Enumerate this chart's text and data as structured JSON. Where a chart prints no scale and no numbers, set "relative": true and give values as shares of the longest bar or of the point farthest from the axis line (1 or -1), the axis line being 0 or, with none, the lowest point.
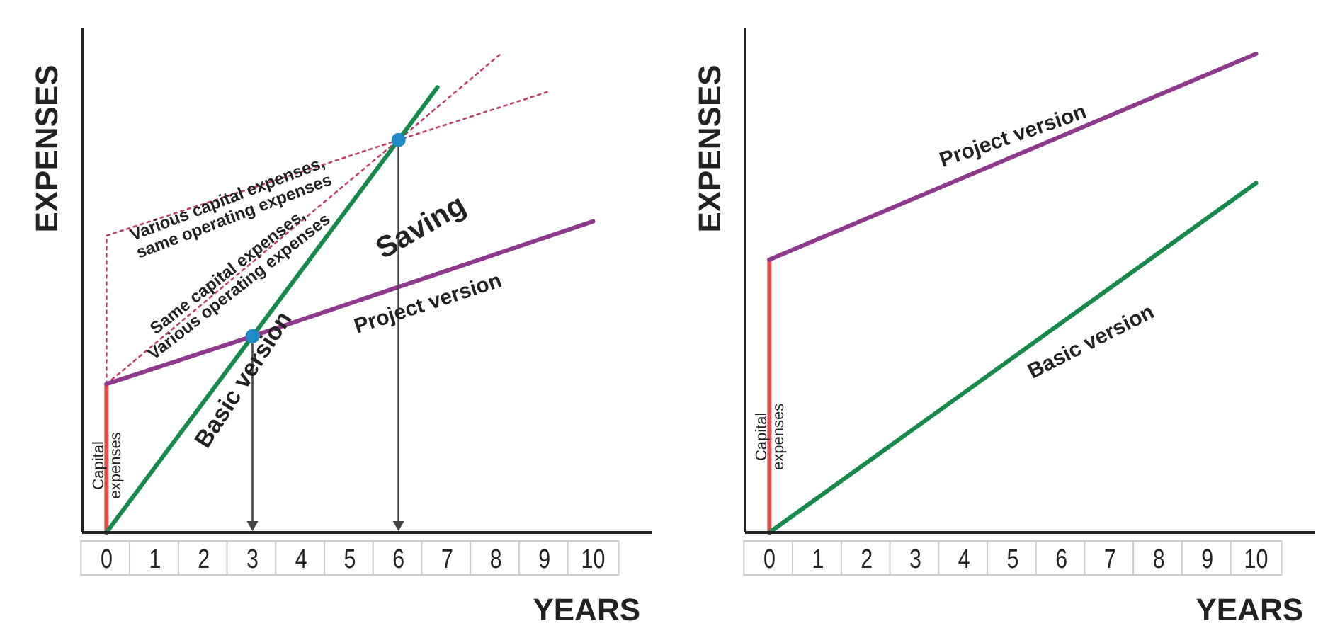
{
  "chart_data": [
    {
      "type": "line",
      "relative": true,
      "xlabel": "YEARS",
      "ylabel": "EXPENSES",
      "xlim": [
        -0.5,
        11.2
      ],
      "xticks": [
        0,
        1,
        2,
        3,
        4,
        5,
        6,
        7,
        8,
        9,
        10
      ],
      "tick_labels": "x",
      "marker": "none",
      "series": [
        {
          "x": [
            0,
            0
          ],
          "values": [
            0,
            0.31
          ],
          "color": "#e0524f"
        },
        {
          "x": [
            0,
            0,
            6,
            9.05
          ],
          "values": [
            0.31,
            0.62,
            0.82,
            0.92
          ],
          "color": "#c2406a",
          "line_style": "dotted"
        },
        {
          "x": [
            0,
            6,
            8.1
          ],
          "values": [
            0.31,
            0.82,
            1
          ],
          "color": "#c2406a",
          "line_style": "dotted"
        },
        {
          "x": [
            0,
            3,
            6,
            6.8
          ],
          "values": [
            0,
            0.41,
            0.82,
            0.93
          ],
          "color": "#17894a"
        },
        {
          "x": [
            0,
            3,
            10
          ],
          "values": [
            0.31,
            0.41,
            0.65
          ],
          "color": "#8e3a8c"
        },
        {
          "type": "scatter",
          "x": [
            3,
            6
          ],
          "values": [
            0.41,
            0.82
          ],
          "color": "#1e8ac8",
          "marker": "circle"
        }
      ],
      "annotations": [
        "Various capital expenses,\nsame operating expenses",
        "Same capital expenses,\nVarious operating expenses",
        "Basic version",
        "Saving",
        "Project version",
        {
          "text": "Capital\nexpenses",
          "x": 0,
          "y": 0.14
        }
      ]
    },
    {
      "type": "line",
      "relative": true,
      "xlabel": "YEARS",
      "ylabel": "EXPENSES",
      "xlim": [
        -0.5,
        11.2
      ],
      "xticks": [
        0,
        1,
        2,
        3,
        4,
        5,
        6,
        7,
        8,
        9,
        10
      ],
      "tick_labels": "x",
      "marker": "none",
      "series": [
        {
          "x": [
            0,
            0
          ],
          "values": [
            0,
            0.57
          ],
          "color": "#e0524f"
        },
        {
          "x": [
            0,
            10
          ],
          "values": [
            0,
            0.73
          ],
          "color": "#17894a"
        },
        {
          "x": [
            0,
            10
          ],
          "values": [
            0.57,
            1
          ],
          "color": "#8e3a8c"
        }
      ],
      "annotations": [
        "Project version",
        "Basic version",
        {
          "text": "Capital\nexpenses",
          "x": 0,
          "y": 0.2
        }
      ]
    }
  ]
}
